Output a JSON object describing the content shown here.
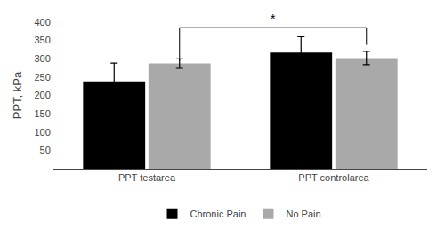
{
  "chart_data": {
    "type": "bar",
    "categories": [
      "PPT testarea",
      "PPT controlarea"
    ],
    "series": [
      {
        "name": "Chronic Pain",
        "color": "#000000",
        "values": [
          238,
          317
        ],
        "errors": [
          50,
          43
        ]
      },
      {
        "name": "No Pain",
        "color": "#a9a9a9",
        "values": [
          287,
          302
        ],
        "errors": [
          13,
          18
        ]
      }
    ],
    "ylabel": "PPT, kPa",
    "ylim": [
      0,
      400
    ],
    "yticks": [
      50,
      100,
      150,
      200,
      250,
      300,
      350,
      400
    ],
    "grid": false,
    "legend": "bottom",
    "annotations": [
      {
        "text": "*",
        "series": "No Pain",
        "from": 0,
        "to": 1,
        "y": 385,
        "left_drop": 295,
        "right_drop": 338
      }
    ]
  }
}
